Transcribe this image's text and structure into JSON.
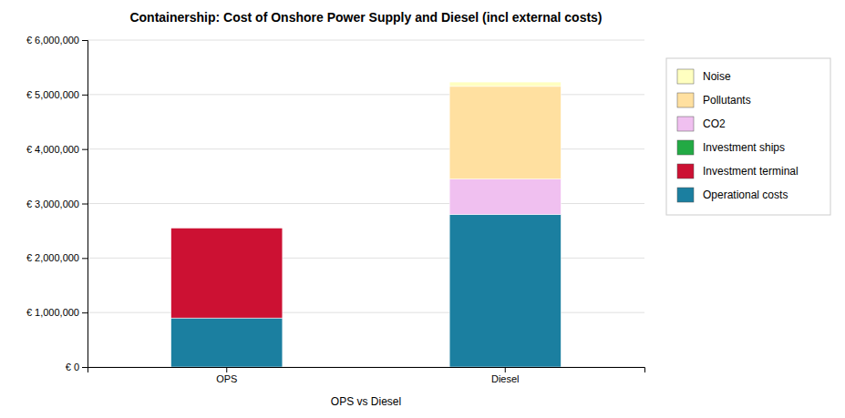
{
  "chart_data": {
    "type": "bar",
    "stacked": true,
    "title": "Containership: Cost of Onshore Power Supply and Diesel (incl external costs)",
    "xlabel": "OPS vs Diesel",
    "categories": [
      "OPS",
      "Diesel"
    ],
    "series": [
      {
        "name": "Operational costs",
        "color": "#1b7fa0",
        "values": [
          900000,
          2800000
        ]
      },
      {
        "name": "Investment terminal",
        "color": "#cc1133",
        "values": [
          1650000,
          0
        ]
      },
      {
        "name": "Investment ships",
        "color": "#22aa44",
        "values": [
          0,
          0
        ]
      },
      {
        "name": "CO2",
        "color": "#f0c0f0",
        "values": [
          0,
          650000
        ]
      },
      {
        "name": "Pollutants",
        "color": "#ffe0a0",
        "values": [
          0,
          1700000
        ]
      },
      {
        "name": "Noise",
        "color": "#ffffc0",
        "values": [
          0,
          80000
        ]
      }
    ],
    "ylim": [
      0,
      6000000
    ],
    "yticks": [
      {
        "value": 0,
        "label": "€ 0"
      },
      {
        "value": 1000000,
        "label": "€ 1,000,000"
      },
      {
        "value": 2000000,
        "label": "€ 2,000,000"
      },
      {
        "value": 3000000,
        "label": "€ 3,000,000"
      },
      {
        "value": 4000000,
        "label": "€ 4,000,000"
      },
      {
        "value": 5000000,
        "label": "€ 5,000,000"
      },
      {
        "value": 6000000,
        "label": "€ 6,000,000"
      }
    ],
    "grid": true,
    "legend": "right"
  }
}
